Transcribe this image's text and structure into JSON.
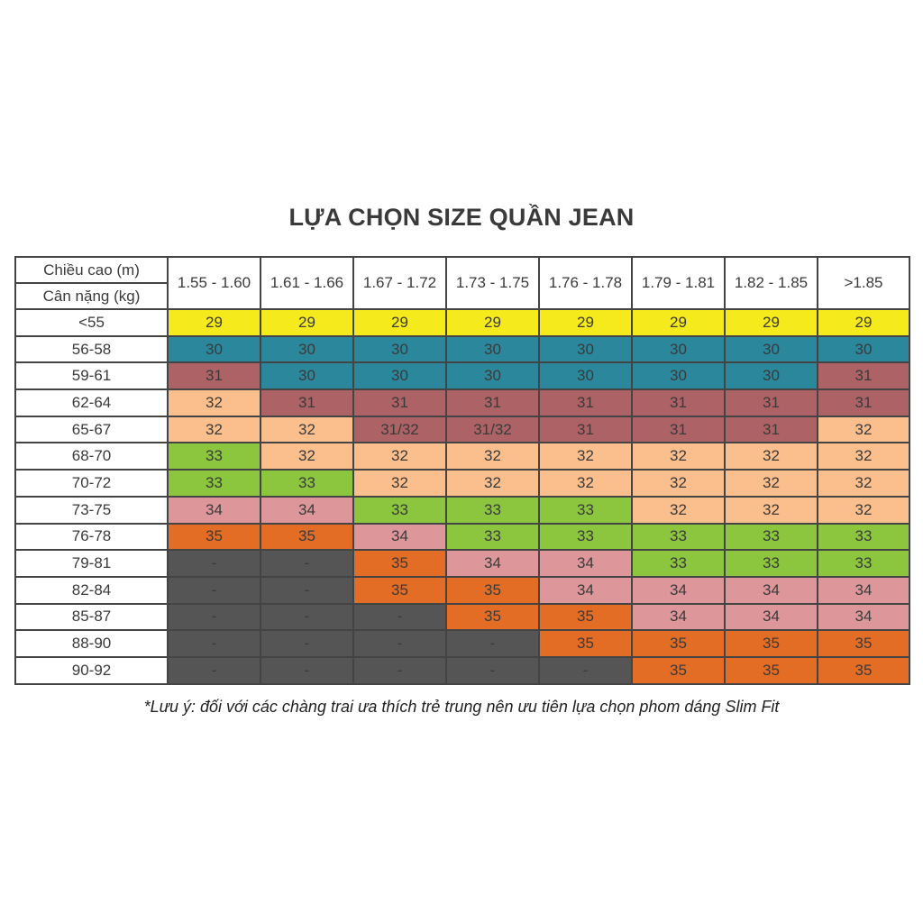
{
  "title": "LỰA CHỌN SIZE QUẦN JEAN",
  "table": {
    "corner": {
      "height_label": "Chiều cao (m)",
      "weight_label": "Cân nặng (kg)"
    },
    "height_columns": [
      "1.55 - 1.60",
      "1.61 - 1.66",
      "1.67 - 1.72",
      "1.73 - 1.75",
      "1.76 - 1.78",
      "1.79 - 1.81",
      "1.82 - 1.85",
      ">1.85"
    ],
    "rows": [
      {
        "weight": "<55",
        "sizes": [
          "29",
          "29",
          "29",
          "29",
          "29",
          "29",
          "29",
          "29"
        ]
      },
      {
        "weight": "56-58",
        "sizes": [
          "30",
          "30",
          "30",
          "30",
          "30",
          "30",
          "30",
          "30"
        ]
      },
      {
        "weight": "59-61",
        "sizes": [
          "31",
          "30",
          "30",
          "30",
          "30",
          "30",
          "30",
          "31"
        ]
      },
      {
        "weight": "62-64",
        "sizes": [
          "32",
          "31",
          "31",
          "31",
          "31",
          "31",
          "31",
          "31"
        ]
      },
      {
        "weight": "65-67",
        "sizes": [
          "32",
          "32",
          "31/32",
          "31/32",
          "31",
          "31",
          "31",
          "32"
        ]
      },
      {
        "weight": "68-70",
        "sizes": [
          "33",
          "32",
          "32",
          "32",
          "32",
          "32",
          "32",
          "32"
        ]
      },
      {
        "weight": "70-72",
        "sizes": [
          "33",
          "33",
          "32",
          "32",
          "32",
          "32",
          "32",
          "32"
        ]
      },
      {
        "weight": "73-75",
        "sizes": [
          "34",
          "34",
          "33",
          "33",
          "33",
          "32",
          "32",
          "32"
        ]
      },
      {
        "weight": "76-78",
        "sizes": [
          "35",
          "35",
          "34",
          "33",
          "33",
          "33",
          "33",
          "33"
        ]
      },
      {
        "weight": "79-81",
        "sizes": [
          "-",
          "-",
          "35",
          "34",
          "34",
          "33",
          "33",
          "33"
        ]
      },
      {
        "weight": "82-84",
        "sizes": [
          "-",
          "-",
          "35",
          "35",
          "34",
          "34",
          "34",
          "34"
        ]
      },
      {
        "weight": "85-87",
        "sizes": [
          "-",
          "-",
          "-",
          "35",
          "35",
          "34",
          "34",
          "34"
        ]
      },
      {
        "weight": "88-90",
        "sizes": [
          "-",
          "-",
          "-",
          "-",
          "35",
          "35",
          "35",
          "35"
        ]
      },
      {
        "weight": "90-92",
        "sizes": [
          "-",
          "-",
          "-",
          "-",
          "-",
          "35",
          "35",
          "35"
        ]
      }
    ]
  },
  "size_colors": {
    "29": "#f5ea1c",
    "30": "#2b889c",
    "31": "#ad6266",
    "31/32": "#ad6266",
    "32": "#fbbf8d",
    "33": "#8cc63f",
    "34": "#dd979a",
    "35": "#e46d25",
    "-": "#555555"
  },
  "footnote": "*Lưu ý: đối với các chàng trai ưa thích trẻ trung nên ưu tiên lựa chọn phom dáng Slim Fit"
}
